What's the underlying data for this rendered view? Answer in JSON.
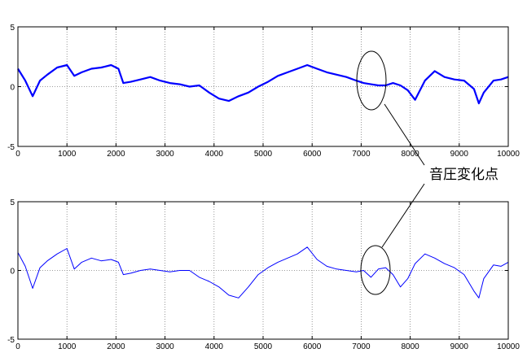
{
  "annotation": {
    "text": "音圧変化点"
  },
  "colors": {
    "signal": "#0000ff",
    "axes": "#000000",
    "grid": "#7f7f7f",
    "background": "#ffffff"
  },
  "chart_data": [
    {
      "type": "line",
      "title": "",
      "xlabel": "",
      "ylabel": "",
      "xlim": [
        0,
        10000
      ],
      "ylim": [
        -5,
        5
      ],
      "grid": true,
      "xticks": [
        0,
        1000,
        2000,
        3000,
        4000,
        5000,
        6000,
        7000,
        8000,
        9000,
        10000
      ],
      "yticks": [
        -5,
        0,
        5
      ],
      "series": [
        {
          "x": [
            0,
            150,
            300,
            450,
            600,
            800,
            1000,
            1150,
            1300,
            1500,
            1700,
            1900,
            2050,
            2150,
            2300,
            2500,
            2700,
            2900,
            3100,
            3300,
            3500,
            3700,
            3900,
            4100,
            4300,
            4500,
            4700,
            4900,
            5100,
            5300,
            5500,
            5700,
            5900,
            6100,
            6300,
            6500,
            6700,
            6900,
            7050,
            7200,
            7350,
            7500,
            7650,
            7800,
            7950,
            8100,
            8300,
            8500,
            8700,
            8900,
            9100,
            9300,
            9400,
            9500,
            9700,
            9850,
            10000
          ],
          "y": [
            1.5,
            0.5,
            -0.8,
            0.5,
            1.0,
            1.6,
            1.8,
            0.9,
            1.2,
            1.5,
            1.6,
            1.8,
            1.5,
            0.3,
            0.4,
            0.6,
            0.8,
            0.5,
            0.3,
            0.2,
            0.0,
            0.1,
            -0.5,
            -1.0,
            -1.2,
            -0.8,
            -0.5,
            0.0,
            0.4,
            0.9,
            1.2,
            1.5,
            1.8,
            1.5,
            1.2,
            1.0,
            0.8,
            0.5,
            0.3,
            0.2,
            0.1,
            0.1,
            0.3,
            0.1,
            -0.3,
            -1.1,
            0.5,
            1.3,
            0.8,
            0.6,
            0.5,
            -0.2,
            -1.4,
            -0.5,
            0.5,
            0.6,
            0.8
          ]
        }
      ]
    },
    {
      "type": "line",
      "title": "",
      "xlabel": "",
      "ylabel": "",
      "xlim": [
        0,
        10000
      ],
      "ylim": [
        -5,
        5
      ],
      "grid": true,
      "xticks": [
        0,
        1000,
        2000,
        3000,
        4000,
        5000,
        6000,
        7000,
        8000,
        9000,
        10000
      ],
      "yticks": [
        -5,
        0,
        5
      ],
      "series": [
        {
          "x": [
            0,
            150,
            300,
            450,
            600,
            800,
            1000,
            1150,
            1300,
            1500,
            1700,
            1900,
            2050,
            2150,
            2300,
            2500,
            2700,
            2900,
            3100,
            3300,
            3500,
            3700,
            3900,
            4100,
            4300,
            4500,
            4700,
            4900,
            5100,
            5300,
            5500,
            5700,
            5900,
            6100,
            6300,
            6500,
            6700,
            6900,
            7050,
            7200,
            7350,
            7500,
            7650,
            7800,
            7950,
            8100,
            8300,
            8500,
            8700,
            8900,
            9100,
            9300,
            9400,
            9500,
            9700,
            9850,
            10000
          ],
          "y": [
            1.3,
            0.3,
            -1.3,
            0.2,
            0.7,
            1.2,
            1.6,
            0.1,
            0.6,
            0.9,
            0.7,
            0.8,
            0.6,
            -0.3,
            -0.2,
            0.0,
            0.1,
            0.0,
            -0.1,
            0.0,
            0.0,
            -0.5,
            -0.8,
            -1.2,
            -1.8,
            -2.0,
            -1.2,
            -0.3,
            0.2,
            0.6,
            0.9,
            1.2,
            1.7,
            0.8,
            0.3,
            0.1,
            0.0,
            -0.1,
            0.0,
            -0.5,
            0.1,
            0.2,
            -0.3,
            -1.2,
            -0.6,
            0.5,
            1.2,
            0.9,
            0.5,
            0.2,
            -0.3,
            -1.5,
            -2.0,
            -0.6,
            0.4,
            0.3,
            0.6
          ]
        }
      ]
    }
  ]
}
